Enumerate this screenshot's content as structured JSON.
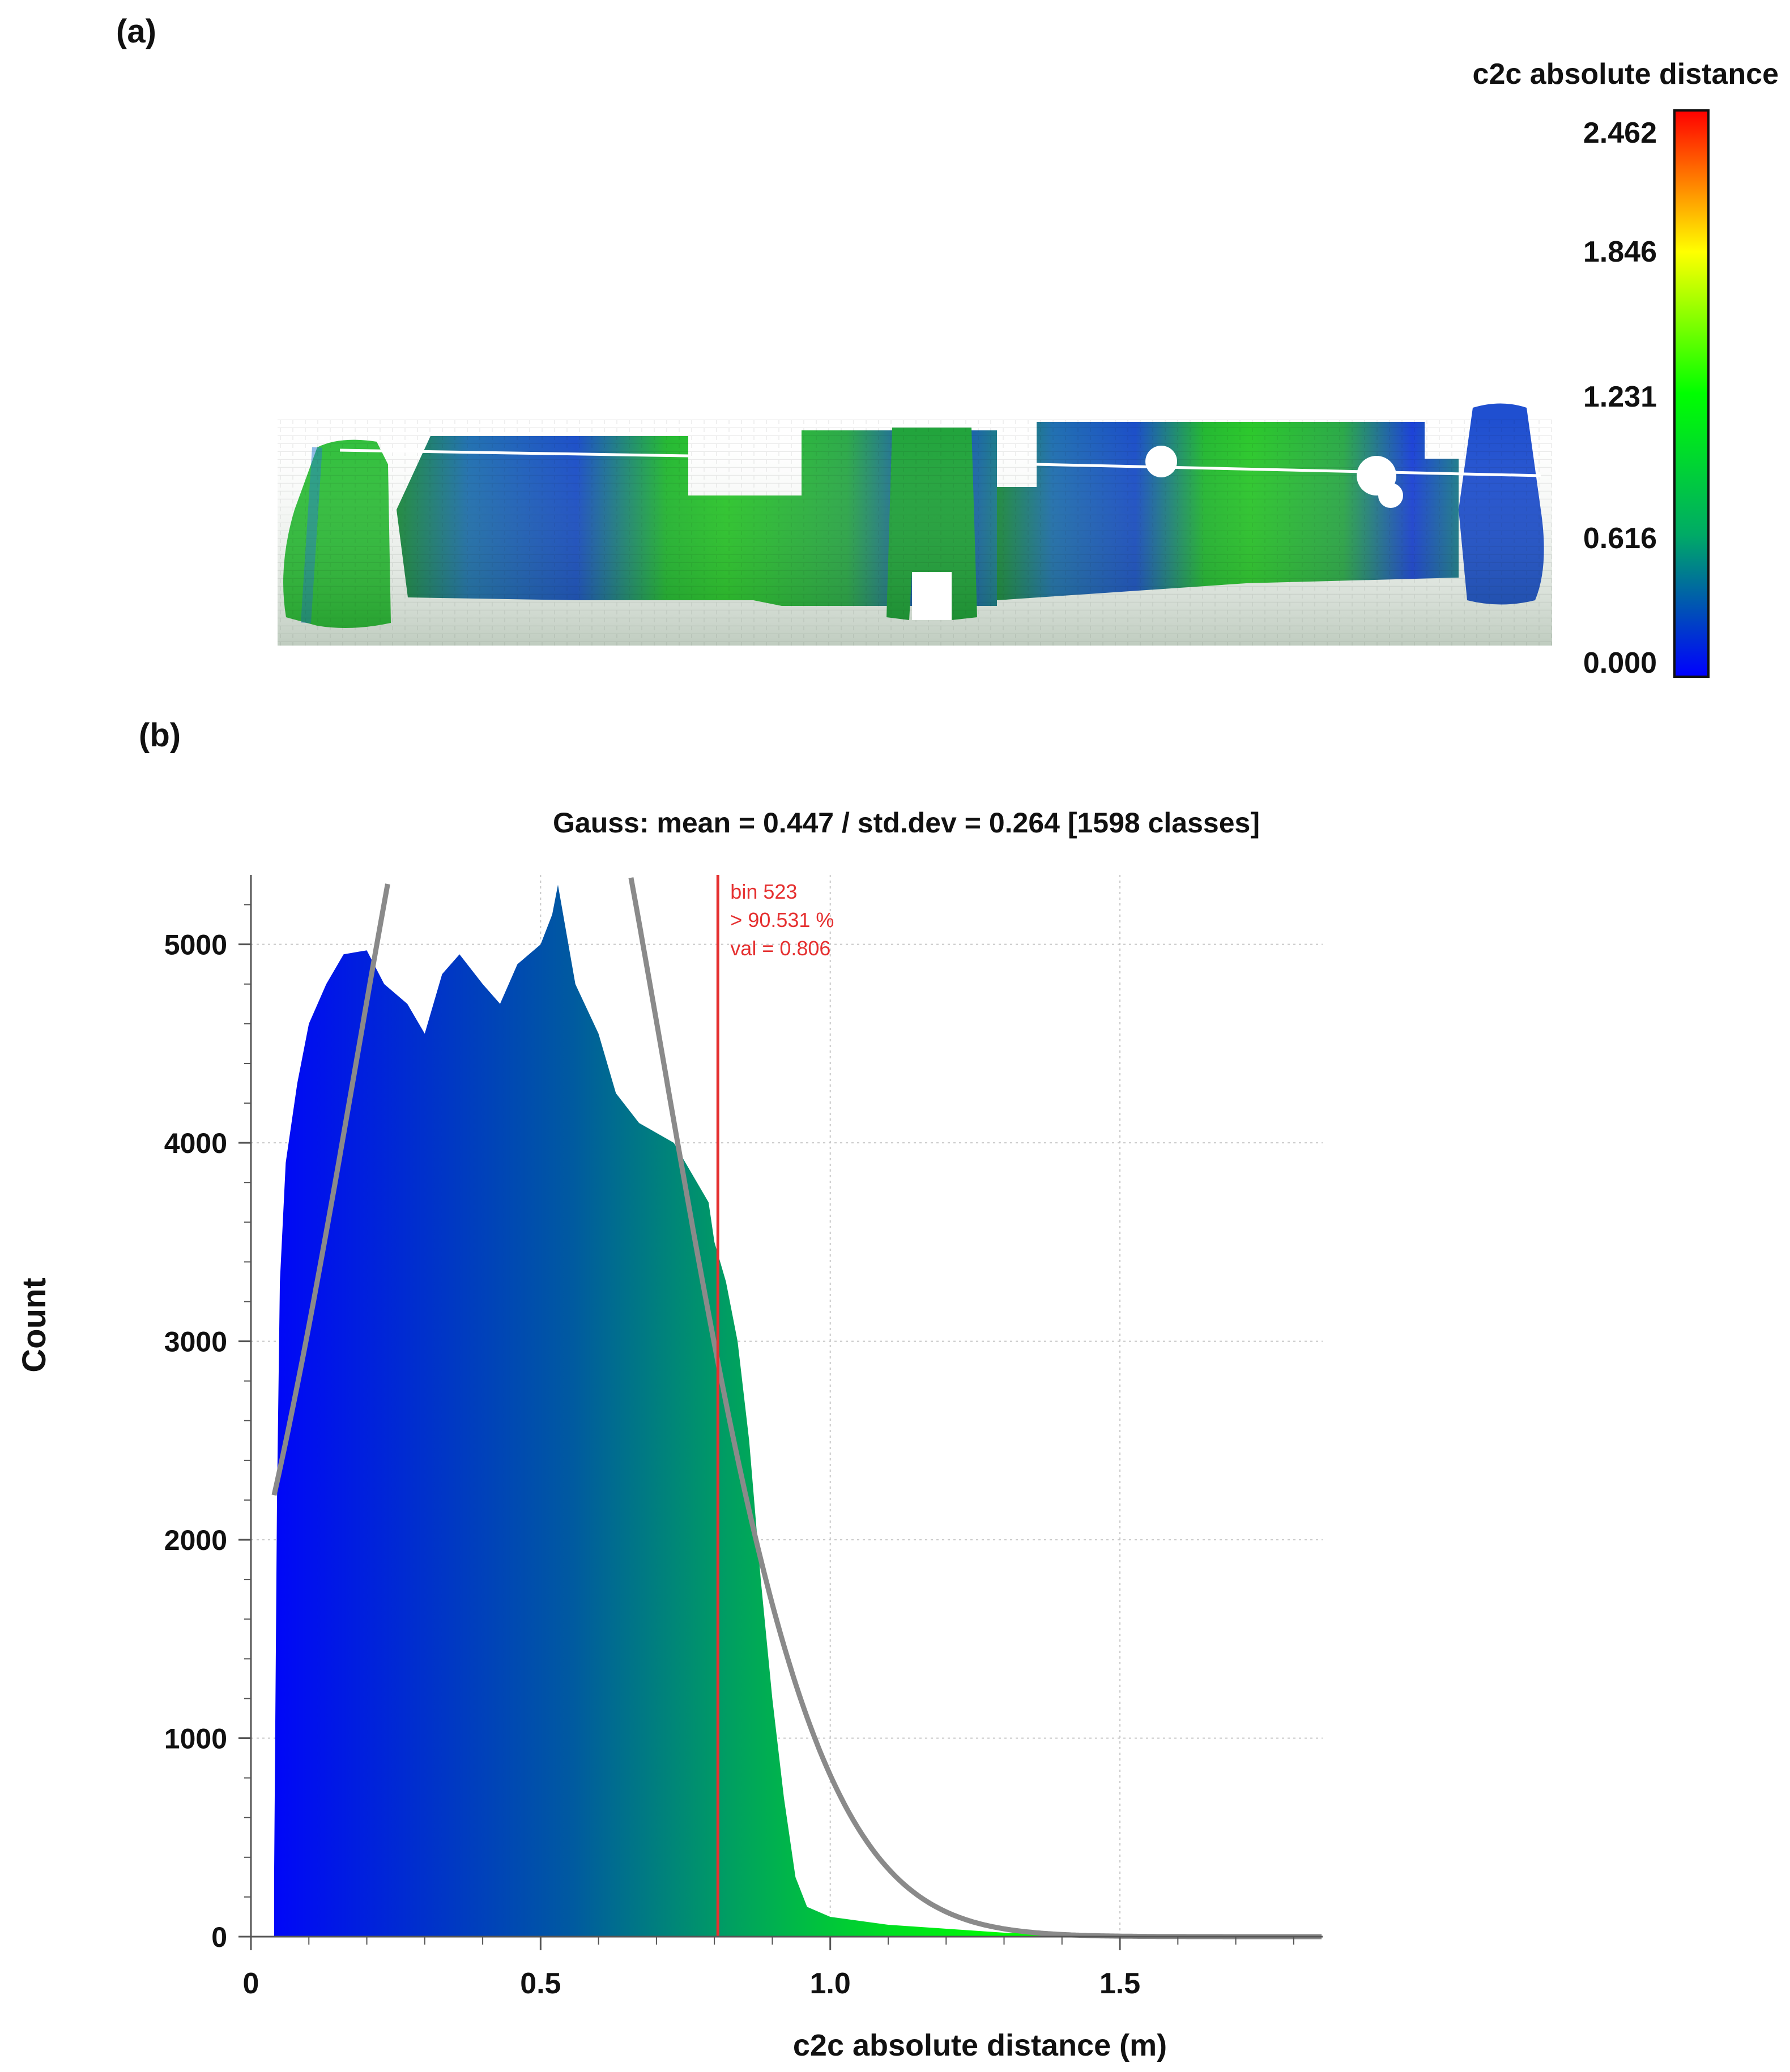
{
  "panel_a": {
    "label": "(a)",
    "colorbar": {
      "title": "c2c absolute distance",
      "ticks": [
        "2.462",
        "1.846",
        "1.231",
        "0.616",
        "0.000"
      ],
      "tick_values": [
        2.462,
        1.846,
        1.231,
        0.616,
        0.0
      ],
      "range": [
        0.0,
        2.462
      ],
      "gradient": [
        "#0000ff",
        "#00aa66",
        "#00ff00",
        "#ffff00",
        "#ff0000"
      ]
    },
    "image": "point-cloud rendering of a fortified wall with two towers and a central gate, colored by c2c distance"
  },
  "panel_b": {
    "label": "(b)"
  },
  "chart_data": {
    "type": "bar",
    "title": "Gauss: mean = 0.447 / std.dev = 0.264 [1598 classes]",
    "xlabel": "c2c absolute distance (m)",
    "ylabel": "Count",
    "xlim": [
      0,
      1.85
    ],
    "ylim": [
      0,
      5350
    ],
    "xticks": [
      "0",
      "0.5",
      "1.0",
      "1.5"
    ],
    "xtick_values": [
      0,
      0.5,
      1.0,
      1.5
    ],
    "yticks": [
      "0",
      "1000",
      "2000",
      "3000",
      "4000",
      "5000"
    ],
    "ytick_values": [
      0,
      1000,
      2000,
      3000,
      4000,
      5000
    ],
    "grid": true,
    "histogram_profile": {
      "x": [
        0.04,
        0.045,
        0.05,
        0.06,
        0.08,
        0.1,
        0.13,
        0.16,
        0.2,
        0.23,
        0.27,
        0.3,
        0.33,
        0.36,
        0.4,
        0.43,
        0.46,
        0.5,
        0.52,
        0.53,
        0.56,
        0.6,
        0.63,
        0.67,
        0.7,
        0.73,
        0.76,
        0.79,
        0.8,
        0.82,
        0.84,
        0.86,
        0.88,
        0.9,
        0.92,
        0.94,
        0.96,
        1.0,
        1.05,
        1.1,
        1.2,
        1.3,
        1.4,
        1.5,
        1.6,
        1.7,
        1.8,
        1.85
      ],
      "y": [
        300,
        2200,
        3300,
        3900,
        4300,
        4600,
        4800,
        4950,
        4970,
        4800,
        4700,
        4550,
        4850,
        4950,
        4800,
        4700,
        4900,
        5000,
        5150,
        5300,
        4800,
        4550,
        4250,
        4100,
        4050,
        4000,
        3850,
        3700,
        3500,
        3300,
        3000,
        2500,
        1800,
        1200,
        700,
        300,
        150,
        100,
        80,
        60,
        40,
        20,
        15,
        10,
        8,
        5,
        5,
        0
      ]
    },
    "gauss_fit": {
      "mean": 0.447,
      "std_dev": 0.264,
      "peak": 7300
    },
    "gradient": [
      "#0000ff",
      "#00aa66",
      "#00ff00",
      "#ffff00"
    ],
    "gradient_range": [
      0.0,
      1.85
    ],
    "marker": {
      "x": 0.806,
      "lines": [
        "bin 523",
        "> 90.531 %",
        "val = 0.806"
      ],
      "color": "#e53030"
    }
  }
}
